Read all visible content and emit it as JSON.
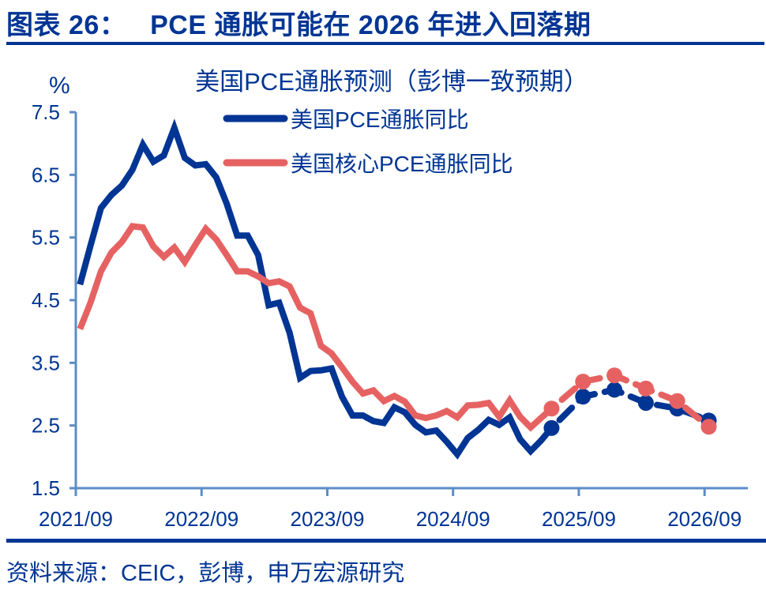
{
  "figure": {
    "title": "图表 26：   PCE 通胀可能在 2026 年进入回落期",
    "source": "资料来源：CEIC，彭博，申万宏源研究"
  },
  "colors": {
    "headline": "#003594",
    "core": "#e66262",
    "axis": "#5b8cc7",
    "text": "#003594"
  },
  "chart_data": {
    "type": "line",
    "title": "美国PCE通胀预测（彭博一致预期）",
    "ylabel": "%",
    "xlabel": "",
    "ylim": [
      1.5,
      7.5
    ],
    "yticks": [
      "1.5",
      "2.5",
      "3.5",
      "4.5",
      "5.5",
      "6.5",
      "7.5"
    ],
    "xticks": [
      "2021/09",
      "2022/09",
      "2023/09",
      "2024/09",
      "2025/09",
      "2026/09"
    ],
    "xrange": [
      "2021-09",
      "2026-12"
    ],
    "grid": false,
    "legend_position": "top-right",
    "actual_start": "2021-09",
    "actual_frequency": "monthly",
    "series": [
      {
        "name": "美国PCE通胀同比",
        "color": "#003594",
        "actual": [
          4.75,
          5.37,
          5.97,
          6.18,
          6.33,
          6.58,
          6.98,
          6.71,
          6.81,
          7.25,
          6.77,
          6.65,
          6.67,
          6.46,
          6.04,
          5.53,
          5.53,
          5.22,
          4.42,
          4.46,
          3.98,
          3.26,
          3.37,
          3.38,
          3.41,
          2.96,
          2.66,
          2.66,
          2.57,
          2.54,
          2.79,
          2.71,
          2.51,
          2.39,
          2.42,
          2.24,
          2.04,
          2.3,
          2.43,
          2.59,
          2.51,
          2.63,
          2.28,
          2.09,
          2.26
        ],
        "forecast": [
          {
            "date": "2025-06",
            "value": 2.46
          },
          {
            "date": "2025-09",
            "value": 2.96
          },
          {
            "date": "2025-12",
            "value": 3.07
          },
          {
            "date": "2026-03",
            "value": 2.86
          },
          {
            "date": "2026-06",
            "value": 2.77
          },
          {
            "date": "2026-09",
            "value": 2.58
          }
        ]
      },
      {
        "name": "美国核心PCE通胀同比",
        "color": "#e66262",
        "actual": [
          4.04,
          4.46,
          4.96,
          5.26,
          5.43,
          5.68,
          5.66,
          5.36,
          5.19,
          5.34,
          5.11,
          5.38,
          5.64,
          5.47,
          5.22,
          4.96,
          4.96,
          4.88,
          4.77,
          4.8,
          4.72,
          4.38,
          4.29,
          3.77,
          3.65,
          3.43,
          3.2,
          3.01,
          3.06,
          2.89,
          2.97,
          2.88,
          2.66,
          2.62,
          2.66,
          2.73,
          2.63,
          2.82,
          2.83,
          2.86,
          2.64,
          2.9,
          2.64,
          2.47,
          2.62
        ],
        "forecast": [
          {
            "date": "2025-06",
            "value": 2.77
          },
          {
            "date": "2025-09",
            "value": 3.2
          },
          {
            "date": "2025-12",
            "value": 3.3
          },
          {
            "date": "2026-03",
            "value": 3.09
          },
          {
            "date": "2026-06",
            "value": 2.89
          },
          {
            "date": "2026-09",
            "value": 2.48
          }
        ]
      }
    ]
  }
}
